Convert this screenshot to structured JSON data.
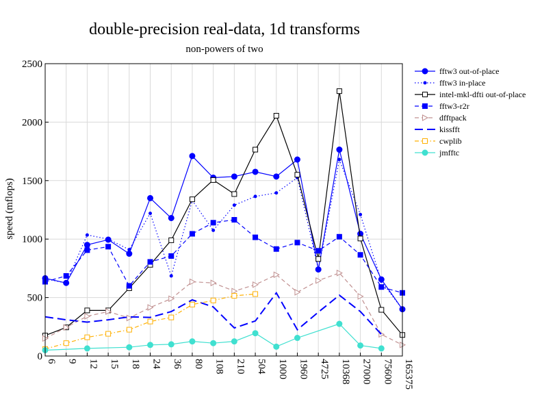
{
  "chart_data": {
    "type": "line",
    "title": "double-precision real-data, 1d transforms",
    "subtitle": "non-powers of two",
    "ylabel": "speed (mflops)",
    "xlabel": "",
    "categories": [
      "6",
      "9",
      "12",
      "15",
      "18",
      "24",
      "36",
      "80",
      "108",
      "210",
      "504",
      "1000",
      "1960",
      "4725",
      "10368",
      "27000",
      "75600",
      "165375"
    ],
    "yticks": [
      0,
      500,
      1000,
      1500,
      2000,
      2500
    ],
    "ylim": [
      0,
      2500
    ],
    "grid": true,
    "legend_position": "right",
    "series": [
      {
        "name": "fftw3 out-of-place",
        "color": "#0000ff",
        "dash": "solid",
        "marker": "circle",
        "values": [
          665,
          625,
          950,
          995,
          875,
          1350,
          1180,
          1710,
          1525,
          1535,
          1575,
          1535,
          1680,
          740,
          1765,
          1045,
          655,
          400
        ]
      },
      {
        "name": "fftw3 in-place",
        "color": "#0000ff",
        "dash": "dotted",
        "marker": "small-dot",
        "values": [
          660,
          625,
          1035,
          1000,
          910,
          1220,
          685,
          1330,
          1075,
          1290,
          1365,
          1395,
          1525,
          740,
          1680,
          1210,
          640,
          400
        ]
      },
      {
        "name": "intel-mkl-dfti out-of-place",
        "color": "#000000",
        "dash": "solid",
        "marker": "open-square",
        "values": [
          175,
          245,
          390,
          390,
          580,
          780,
          990,
          1340,
          1505,
          1385,
          1765,
          2055,
          1550,
          830,
          2265,
          1005,
          395,
          180
        ]
      },
      {
        "name": "fftw3-r2r",
        "color": "#0000ff",
        "dash": "dashed",
        "marker": "filled-square",
        "values": [
          635,
          685,
          905,
          935,
          600,
          805,
          855,
          1045,
          1140,
          1165,
          1015,
          915,
          970,
          900,
          1020,
          865,
          590,
          540
        ]
      },
      {
        "name": "dfftpack",
        "color": "#c09090",
        "dash": "dashed",
        "marker": "open-triangle",
        "values": [
          150,
          245,
          340,
          380,
          325,
          415,
          490,
          635,
          625,
          555,
          610,
          695,
          545,
          645,
          710,
          510,
          185,
          95
        ]
      },
      {
        "name": "kissfft",
        "color": "#0000ff",
        "dash": "long-dash",
        "marker": "none",
        "values": [
          335,
          310,
          290,
          310,
          335,
          330,
          380,
          480,
          420,
          240,
          300,
          540,
          225,
          375,
          520,
          380,
          185,
          null
        ]
      },
      {
        "name": "cwplib",
        "color": "#ffb000",
        "dash": "dash-dot",
        "marker": "open-square",
        "values": [
          60,
          110,
          160,
          190,
          225,
          295,
          330,
          440,
          475,
          515,
          530,
          null,
          null,
          null,
          null,
          null,
          null,
          null
        ]
      },
      {
        "name": "jmfftc",
        "color": "#40e0d0",
        "dash": "solid",
        "marker": "circle",
        "values": [
          50,
          null,
          65,
          null,
          75,
          95,
          100,
          125,
          110,
          125,
          195,
          80,
          155,
          null,
          275,
          90,
          65,
          null
        ]
      }
    ]
  }
}
